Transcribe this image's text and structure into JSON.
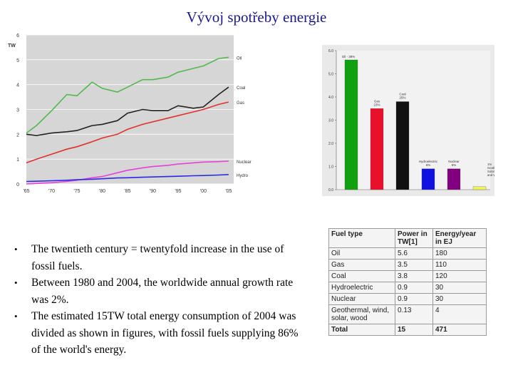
{
  "page": {
    "title": "Vývoj spotřeby energie",
    "bullets": [
      "The twentieth century = twentyfold increase in the use of fossil fuels.",
      "Between 1980 and 2004, the worldwide annual growth rate was 2%.",
      "The estimated 15TW total energy consumption of 2004 was divided as shown in figures, with fossil fuels supplying 86% of the world's energy."
    ]
  },
  "chart_data": [
    {
      "type": "line",
      "title": "",
      "ylabel": "TW",
      "xlim": [
        1965,
        2006
      ],
      "ylim": [
        0,
        6
      ],
      "yticks": [
        0,
        1,
        2,
        3,
        4,
        5,
        6
      ],
      "xticks": [
        1965,
        1970,
        1975,
        1980,
        1985,
        1990,
        1995,
        2000,
        2005
      ],
      "xtick_labels": [
        "'65",
        "'70",
        "'75",
        "'80",
        "'85",
        "'90",
        "'95",
        "'00",
        "'05"
      ],
      "grid": "horizontal",
      "x": [
        1965,
        1967,
        1970,
        1973,
        1975,
        1978,
        1980,
        1983,
        1985,
        1988,
        1990,
        1993,
        1995,
        1998,
        2000,
        2003,
        2005
      ],
      "series": [
        {
          "name": "Oil",
          "color": "#54b84d",
          "values": [
            2.05,
            2.35,
            2.95,
            3.6,
            3.55,
            4.1,
            3.85,
            3.7,
            3.9,
            4.2,
            4.2,
            4.3,
            4.5,
            4.65,
            4.75,
            5.05,
            5.1
          ]
        },
        {
          "name": "Coal",
          "color": "#222222",
          "values": [
            2.0,
            1.95,
            2.05,
            2.1,
            2.15,
            2.35,
            2.4,
            2.55,
            2.85,
            3.0,
            2.95,
            2.95,
            3.15,
            3.05,
            3.1,
            3.6,
            3.9
          ]
        },
        {
          "name": "Gas",
          "color": "#e0322a",
          "values": [
            0.85,
            1.0,
            1.2,
            1.4,
            1.5,
            1.7,
            1.85,
            2.0,
            2.2,
            2.4,
            2.5,
            2.65,
            2.75,
            2.9,
            3.0,
            3.2,
            3.3
          ]
        },
        {
          "name": "Nuclear",
          "color": "#e642d8",
          "values": [
            0.0,
            0.02,
            0.05,
            0.1,
            0.15,
            0.25,
            0.3,
            0.45,
            0.55,
            0.65,
            0.7,
            0.75,
            0.8,
            0.85,
            0.88,
            0.9,
            0.92
          ]
        },
        {
          "name": "Hydro",
          "color": "#2a2ae6",
          "values": [
            0.1,
            0.11,
            0.13,
            0.15,
            0.17,
            0.19,
            0.21,
            0.24,
            0.25,
            0.27,
            0.28,
            0.3,
            0.31,
            0.33,
            0.34,
            0.36,
            0.38
          ]
        }
      ]
    },
    {
      "type": "bar",
      "ylim": [
        0,
        6
      ],
      "yticks": [
        0,
        1,
        2,
        3,
        4,
        5,
        6
      ],
      "ytick_labels": [
        "0.0",
        "1.0",
        "2.0",
        "3.0",
        "4.0",
        "5.0",
        "6.0"
      ],
      "categories": [
        "Oil - 38%",
        "Gas 23%",
        "Coal 25%",
        "Hydroelectric 6%",
        "Nuclear 6%",
        "1% Geothermal, Solar, Wind, and Wood"
      ],
      "values": [
        5.6,
        3.5,
        3.8,
        0.9,
        0.9,
        0.13
      ],
      "colors": [
        "#10a010",
        "#e8102a",
        "#111111",
        "#1010e0",
        "#800080",
        "#f2f25a"
      ]
    }
  ],
  "table": {
    "headers": [
      "Fuel type",
      "Power in TW[1]",
      "Energy/year in EJ"
    ],
    "rows": [
      [
        "Oil",
        "5.6",
        "180"
      ],
      [
        "Gas",
        "3.5",
        "110"
      ],
      [
        "Coal",
        "3.8",
        "120"
      ],
      [
        "Hydroelectric",
        "0.9",
        "30"
      ],
      [
        "Nuclear",
        "0.9",
        "30"
      ],
      [
        "Geothermal, wind, solar, wood",
        "0.13",
        "4"
      ]
    ],
    "total": [
      "Total",
      "15",
      "471"
    ]
  }
}
